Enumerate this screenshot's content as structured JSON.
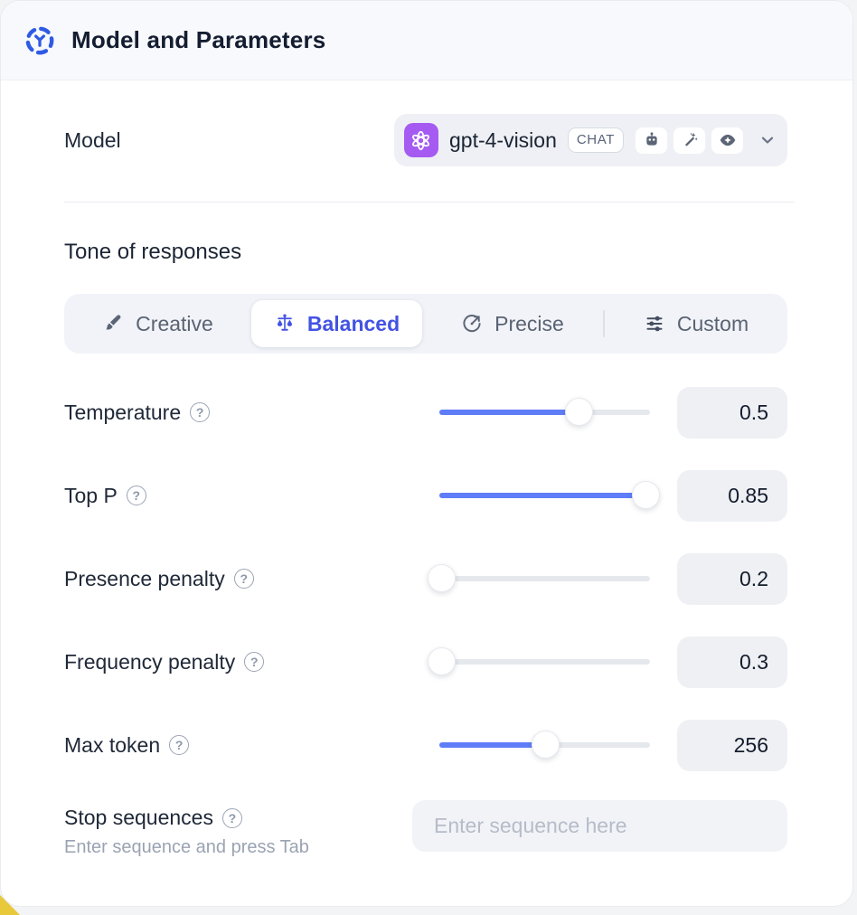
{
  "header": {
    "title": "Model and Parameters"
  },
  "model": {
    "label": "Model",
    "selected": {
      "name": "gpt-4-vision",
      "badge": "CHAT",
      "provider_icon": "openai-logo",
      "capability_icons": [
        "robot-icon",
        "wand-sparkles-icon",
        "eye-sparkle-icon"
      ]
    }
  },
  "tone": {
    "label": "Tone of responses",
    "options": [
      {
        "label": "Creative",
        "icon": "paintbrush-icon",
        "selected": false
      },
      {
        "label": "Balanced",
        "icon": "balance-scale-icon",
        "selected": true
      },
      {
        "label": "Precise",
        "icon": "target-icon",
        "selected": false
      },
      {
        "label": "Custom",
        "icon": "sliders-icon",
        "selected": false
      }
    ]
  },
  "parameters": [
    {
      "label": "Temperature",
      "value": "0.5",
      "slider_pct": 66
    },
    {
      "label": "Top P",
      "value": "0.85",
      "slider_pct": 98
    },
    {
      "label": "Presence penalty",
      "value": "0.2",
      "slider_pct": 1
    },
    {
      "label": "Frequency penalty",
      "value": "0.3",
      "slider_pct": 1
    },
    {
      "label": "Max token",
      "value": "256",
      "slider_pct": 50
    }
  ],
  "stop_sequences": {
    "label": "Stop sequences",
    "helper": "Enter sequence and press Tab",
    "placeholder": "Enter sequence here"
  },
  "help_icon_glyph": "?",
  "colors": {
    "accent_blue": "#5f7df8",
    "selected_indigo": "#4353e3",
    "brand_purple": "#a55bf2",
    "header_bg": "#f8f9fc",
    "corner_accent_yellow": "#e8c93c"
  }
}
